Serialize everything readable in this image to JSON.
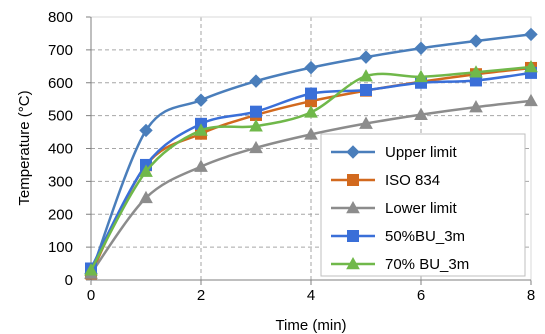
{
  "chart_data": {
    "type": "line",
    "xlabel": "Time (min)",
    "ylabel": "Temperature (°C)",
    "xlim": [
      0,
      8
    ],
    "ylim": [
      0,
      800
    ],
    "xticks": [
      0,
      2,
      4,
      6,
      8
    ],
    "yticks": [
      0,
      100,
      200,
      300,
      400,
      500,
      600,
      700,
      800
    ],
    "grid": "dashed",
    "legend_position": "bottom-right",
    "series": [
      {
        "name": "Upper limit",
        "color": "#4a7ebb",
        "marker": "diamond",
        "x": [
          0,
          1,
          2,
          3,
          4,
          5,
          6,
          7,
          8
        ],
        "y": [
          20,
          455,
          547,
          605,
          646,
          678,
          705,
          727,
          747
        ]
      },
      {
        "name": "ISO 834",
        "color": "#d2691e",
        "marker": "square",
        "x": [
          0,
          1,
          2,
          3,
          4,
          5,
          6,
          7,
          8
        ],
        "y": [
          20,
          349,
          445,
          502,
          544,
          576,
          603,
          626,
          645
        ]
      },
      {
        "name": "Lower limit",
        "color": "#8c8c8c",
        "marker": "triangle",
        "x": [
          0,
          1,
          2,
          3,
          4,
          5,
          6,
          7,
          8
        ],
        "y": [
          20,
          250,
          345,
          402,
          443,
          476,
          503,
          526,
          545
        ]
      },
      {
        "name": "50%BU_3m",
        "color": "#3a6fd8",
        "marker": "square",
        "x": [
          0,
          1,
          2,
          3,
          4,
          5,
          6,
          7,
          8
        ],
        "y": [
          35,
          350,
          475,
          512,
          567,
          578,
          600,
          607,
          630
        ]
      },
      {
        "name": "70% BU_3m",
        "color": "#70b84a",
        "marker": "triangle",
        "x": [
          0,
          1,
          2,
          3,
          4,
          5,
          6,
          7,
          8
        ],
        "y": [
          30,
          330,
          455,
          468,
          510,
          620,
          618,
          632,
          648
        ]
      }
    ]
  }
}
